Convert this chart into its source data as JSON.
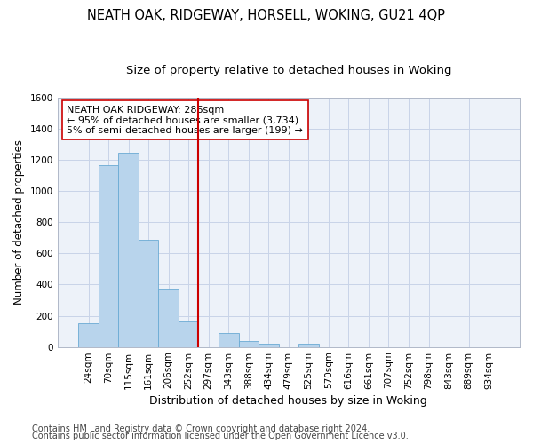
{
  "title": "NEATH OAK, RIDGEWAY, HORSELL, WOKING, GU21 4QP",
  "subtitle": "Size of property relative to detached houses in Woking",
  "xlabel": "Distribution of detached houses by size in Woking",
  "ylabel": "Number of detached properties",
  "categories": [
    "24sqm",
    "70sqm",
    "115sqm",
    "161sqm",
    "206sqm",
    "252sqm",
    "297sqm",
    "343sqm",
    "388sqm",
    "434sqm",
    "479sqm",
    "525sqm",
    "570sqm",
    "616sqm",
    "661sqm",
    "707sqm",
    "752sqm",
    "798sqm",
    "843sqm",
    "889sqm",
    "934sqm"
  ],
  "values": [
    150,
    1165,
    1250,
    690,
    370,
    165,
    0,
    90,
    35,
    20,
    0,
    20,
    0,
    0,
    0,
    0,
    0,
    0,
    0,
    0,
    0
  ],
  "bar_color": "#b8d4ec",
  "bar_edge_color": "#6aaad4",
  "vline_color": "#cc0000",
  "vline_index": 6,
  "annotation_text": "NEATH OAK RIDGEWAY: 286sqm\n← 95% of detached houses are smaller (3,734)\n5% of semi-detached houses are larger (199) →",
  "annotation_box_facecolor": "#ffffff",
  "annotation_box_edgecolor": "#cc0000",
  "ylim": [
    0,
    1600
  ],
  "yticks": [
    0,
    200,
    400,
    600,
    800,
    1000,
    1200,
    1400,
    1600
  ],
  "grid_color": "#c8d4e8",
  "bg_color": "#edf2f9",
  "footnote1": "Contains HM Land Registry data © Crown copyright and database right 2024.",
  "footnote2": "Contains public sector information licensed under the Open Government Licence v3.0.",
  "title_fontsize": 10.5,
  "subtitle_fontsize": 9.5,
  "xlabel_fontsize": 9,
  "ylabel_fontsize": 8.5,
  "tick_fontsize": 7.5,
  "annot_fontsize": 8,
  "footnote_fontsize": 7
}
